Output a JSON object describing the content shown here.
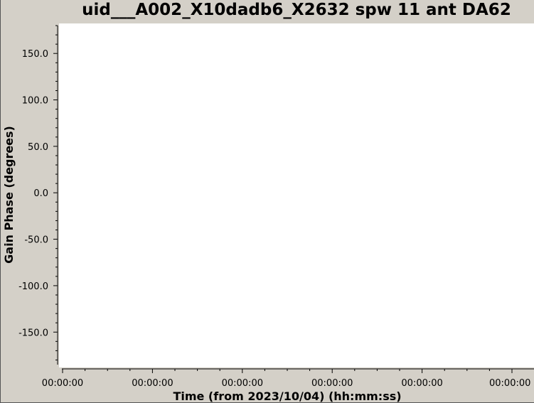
{
  "chart_data": {
    "type": "scatter",
    "title": "uid___A002_X10dadb6_X2632 spw 11 ant DA62",
    "xlabel": "Time (from 2023/10/04) (hh:mm:ss)",
    "ylabel": "Gain Phase (degrees)",
    "ylim": [
      -185,
      180
    ],
    "y_ticks": [
      150.0,
      100.0,
      50.0,
      0.0,
      -50.0,
      -100.0,
      -150.0
    ],
    "y_tick_labels": [
      "150.0",
      "100.0",
      "50.0",
      "0.0",
      "-50.0",
      "-100.0",
      "-150.0"
    ],
    "x_tick_labels": [
      "00:00:00",
      "00:00:00",
      "00:00:00",
      "00:00:00",
      "00:00:00",
      "00:00:00"
    ],
    "series": [],
    "grid": false,
    "legend": "none"
  },
  "colors": {
    "background": "#d4d0c8",
    "plot_area": "#ffffff",
    "text": "#000000"
  }
}
